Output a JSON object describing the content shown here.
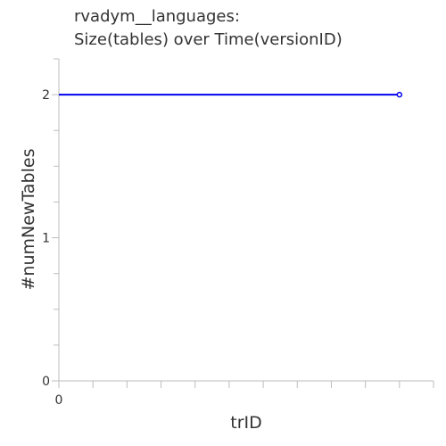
{
  "chart_data": {
    "type": "line",
    "title_lines": [
      "rvadym__languages:",
      "Size(tables) over Time(versionID)"
    ],
    "xlabel": "trID",
    "ylabel": "#numNewTables",
    "x_ticks": [
      0
    ],
    "y_ticks": [
      0,
      1,
      2
    ],
    "xlim": [
      0,
      1.1
    ],
    "ylim": [
      0,
      2.25
    ],
    "grid": false,
    "legend": "none",
    "series": [
      {
        "color": "#0000ee",
        "x": [
          0,
          1
        ],
        "y": [
          2,
          2
        ]
      }
    ]
  }
}
